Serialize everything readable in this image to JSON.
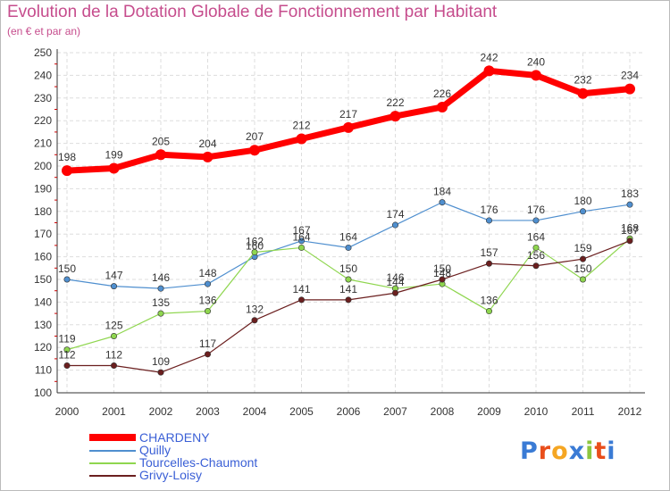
{
  "title": "Evolution de la Dotation Globale de Fonctionnement par Habitant",
  "subtitle": "(en € et par an)",
  "logo_text": "Proxiti",
  "chart_data": {
    "type": "line",
    "title": "Evolution de la Dotation Globale de Fonctionnement par Habitant",
    "subtitle": "(en € et par an)",
    "xlabel": "",
    "ylabel": "",
    "x": [
      "2000",
      "2001",
      "2002",
      "2003",
      "2004",
      "2005",
      "2006",
      "2007",
      "2008",
      "2009",
      "2010",
      "2011",
      "2012"
    ],
    "yticks": [
      100,
      110,
      120,
      130,
      140,
      150,
      160,
      170,
      180,
      190,
      200,
      210,
      220,
      230,
      240,
      250
    ],
    "ylim": [
      100,
      250
    ],
    "grid": true,
    "legend_position": "bottom-left",
    "series": [
      {
        "name": "CHARDENY",
        "color": "#ff0000",
        "values": [
          198,
          199,
          205,
          204,
          207,
          212,
          217,
          222,
          226,
          242,
          240,
          232,
          234
        ]
      },
      {
        "name": "Quilly",
        "color": "#4f8fcf",
        "values": [
          150,
          147,
          146,
          148,
          160,
          167,
          164,
          174,
          184,
          176,
          176,
          180,
          183
        ]
      },
      {
        "name": "Tourcelles-Chaumont",
        "color": "#8fd64f",
        "values": [
          119,
          125,
          135,
          136,
          162,
          164,
          150,
          146,
          148,
          136,
          164,
          150,
          168
        ]
      },
      {
        "name": "Grivy-Loisy",
        "color": "#6b1f1f",
        "values": [
          112,
          112,
          109,
          117,
          132,
          141,
          141,
          144,
          150,
          157,
          156,
          159,
          167
        ]
      }
    ]
  }
}
